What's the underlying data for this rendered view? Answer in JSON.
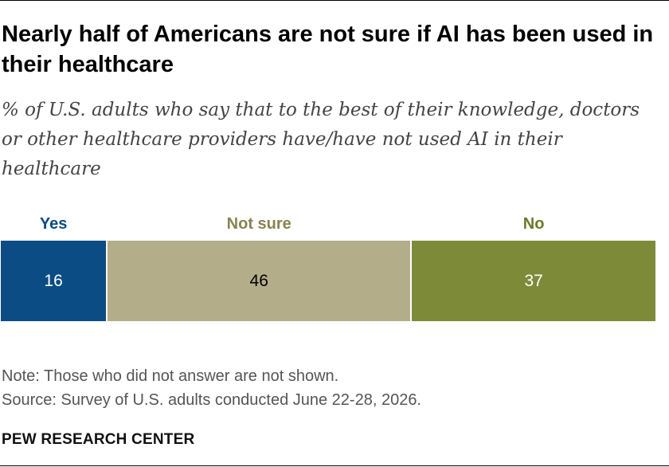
{
  "header": {
    "title": "Nearly half of Americans are not sure if AI has been used in their healthcare",
    "subtitle": "% of U.S. adults who say that to the best of their knowledge, doctors or other healthcare providers have/have not used AI in their healthcare"
  },
  "chart_data": {
    "type": "bar",
    "stacked": true,
    "orientation": "horizontal",
    "total": 99,
    "categories": [
      "Yes",
      "Not sure",
      "No"
    ],
    "values": [
      16,
      46,
      37
    ],
    "colors": [
      "#0b4c84",
      "#b4ad89",
      "#7d8b39"
    ],
    "label_colors": [
      "#0b4c84",
      "#8a8250",
      "#6c7a2c"
    ],
    "value_text_colors": [
      "#ffffff",
      "#000000",
      "#ffffff"
    ]
  },
  "footer": {
    "note": "Note: Those who did not answer are not shown.",
    "source": "Source: Survey of U.S. adults conducted June 22-28, 2026.",
    "org": "PEW RESEARCH CENTER"
  }
}
